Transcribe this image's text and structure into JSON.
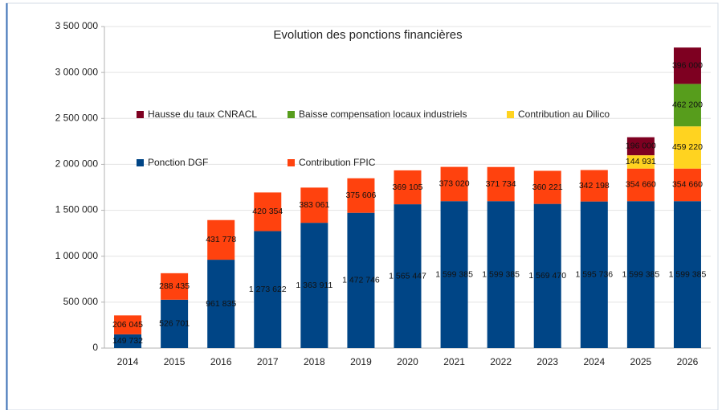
{
  "chart_data": {
    "type": "stacked_bar",
    "title": "Evolution des ponctions financières",
    "categories": [
      "2014",
      "2015",
      "2016",
      "2017",
      "2018",
      "2019",
      "2020",
      "2021",
      "2022",
      "2023",
      "2024",
      "2025",
      "2026"
    ],
    "series": [
      {
        "name": "Ponction DGF",
        "color": "#004586",
        "values": [
          149732,
          526701,
          961835,
          1273622,
          1363911,
          1472746,
          1565447,
          1599385,
          1599385,
          1569470,
          1595736,
          1599385,
          1599385
        ],
        "value_labels": [
          "149 732",
          "526 701",
          "961 835",
          "1 273 622",
          "1 363 911",
          "1 472 746",
          "1 565 447",
          "1 599 385",
          "1 599 385",
          "1 569 470",
          "1 595 736",
          "1 599 385",
          "1 599 385"
        ]
      },
      {
        "name": "Contribution FPIC",
        "color": "#ff420e",
        "values": [
          206045,
          288435,
          431778,
          420354,
          383061,
          375606,
          369105,
          373020,
          371734,
          360221,
          342198,
          354660,
          354660
        ],
        "value_labels": [
          "206 045",
          "288 435",
          "431 778",
          "420 354",
          "383 061",
          "375 606",
          "369 105",
          "373 020",
          "371 734",
          "360 221",
          "342 198",
          "354 660",
          "354 660"
        ]
      },
      {
        "name": "Contribution au Dilico",
        "color": "#ffd320",
        "values": [
          null,
          null,
          null,
          null,
          null,
          null,
          null,
          null,
          null,
          null,
          null,
          144931,
          459220
        ],
        "value_labels": [
          null,
          null,
          null,
          null,
          null,
          null,
          null,
          null,
          null,
          null,
          null,
          "144 931",
          "459 220"
        ]
      },
      {
        "name": "Baisse compensation locaux industriels",
        "color": "#579d1c",
        "values": [
          null,
          null,
          null,
          null,
          null,
          null,
          null,
          null,
          null,
          null,
          null,
          null,
          462200
        ],
        "value_labels": [
          null,
          null,
          null,
          null,
          null,
          null,
          null,
          null,
          null,
          null,
          null,
          null,
          "462 200"
        ]
      },
      {
        "name": "Hausse du taux CNRACL",
        "color": "#7e0021",
        "values": [
          null,
          null,
          null,
          null,
          null,
          null,
          null,
          null,
          null,
          null,
          null,
          196000,
          396000
        ],
        "value_labels": [
          null,
          null,
          null,
          null,
          null,
          null,
          null,
          null,
          null,
          null,
          null,
          "196 000",
          "396 000"
        ]
      }
    ],
    "ylim": [
      0,
      3500000
    ],
    "yticks": [
      0,
      {
        "value": 500000,
        "label": "500 000"
      },
      {
        "value": 1000000,
        "label": "1 000 000"
      },
      {
        "value": 1500000,
        "label": "1 500 000"
      },
      {
        "value": 2000000,
        "label": "2 000 000"
      },
      {
        "value": 2500000,
        "label": "2 500 000"
      },
      {
        "value": 3000000,
        "label": "3 000 000"
      },
      {
        "value": 3500000,
        "label": "3 500 000"
      }
    ],
    "grid": true
  }
}
